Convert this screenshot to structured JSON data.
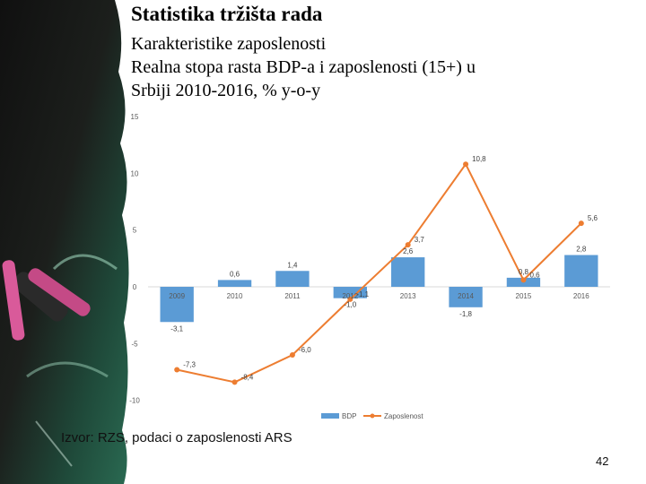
{
  "title": "Statistika tržišta rada",
  "subtitle": "Karakteristike zaposlenosti",
  "chart_title_line1": "Realna stopa rasta BDP-a i zaposlenosti (15+) u",
  "chart_title_line2": "Srbiji 2010-2016, % y-o-y",
  "source": "Izvor: RZS, podaci o zaposlenosti ARS",
  "page_number": "42",
  "chart_data": {
    "type": "bar",
    "categories": [
      "2009",
      "2010",
      "2011",
      "2012",
      "2013",
      "2014",
      "2015",
      "2016"
    ],
    "series": [
      {
        "name": "BDP",
        "type": "bar",
        "color": "#5b9bd5",
        "values": [
          -3.1,
          0.6,
          1.4,
          -1.0,
          2.6,
          -1.8,
          0.8,
          2.8
        ],
        "labels": [
          "-3,1",
          "0,6",
          "1,4",
          "-1,0",
          "2,6",
          "-1,8",
          "0,8",
          "2,8"
        ]
      },
      {
        "name": "Zaposlenost",
        "type": "line",
        "color": "#ed7d31",
        "values": [
          -7.3,
          -8.4,
          -6.0,
          -1.1,
          3.7,
          10.8,
          0.6,
          5.6
        ],
        "labels": [
          "-7,3",
          "-8,4",
          "-6,0",
          "-1,1",
          "3,7",
          "10,8",
          "0,6",
          "5,6"
        ]
      }
    ],
    "ylim": [
      -10,
      15
    ],
    "yticks": [
      15,
      10,
      5,
      0,
      -5,
      -10
    ],
    "legend": "bottom"
  }
}
